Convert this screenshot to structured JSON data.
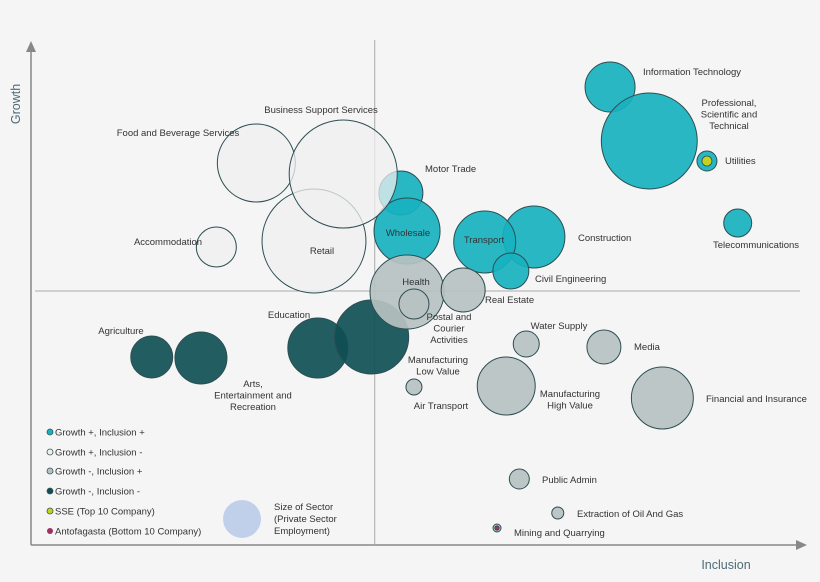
{
  "chart_data": {
    "type": "bubble",
    "xlabel": "Inclusion",
    "ylabel": "Growth",
    "xlim": [
      0,
      100
    ],
    "ylim": [
      0,
      100
    ],
    "quadrant_dividers": {
      "x": 44.7,
      "y": 50.8
    },
    "grid": false,
    "categories": {
      "gpip": {
        "label": "Growth +, Inclusion +",
        "color": "#17b1bf"
      },
      "gpim": {
        "label": "Growth +, Inclusion -",
        "color": "#efefef"
      },
      "gmip": {
        "label": "Growth -, Inclusion +",
        "color": "#b7c1c1"
      },
      "gmim": {
        "label": "Growth -, Inclusion -",
        "color": "#0f4f54"
      }
    },
    "markers": {
      "sse": {
        "label": "SSE (Top 10 Company)",
        "color": "#c6d11e",
        "sector": "Utilities"
      },
      "antofagasta": {
        "label": "Antofagasta (Bottom 10 Company)",
        "color": "#9b3260",
        "sector": "Mining and Quarrying"
      }
    },
    "size_legend": {
      "label": "Size of Sector\n(Private Sector\nEmployment)",
      "color": "#c1d0ea"
    },
    "points": [
      {
        "name": "Information Technology",
        "x": 75.3,
        "y": 91.6,
        "size": 62.5,
        "cat": "gpip"
      },
      {
        "name": "Professional,\nScientific and\nTechnical",
        "x": 80.4,
        "y": 80.8,
        "size": 230,
        "cat": "gpip"
      },
      {
        "name": "Utilities",
        "x": 87.9,
        "y": 76.8,
        "size": 10,
        "cat": "gpip",
        "marker": "sse"
      },
      {
        "name": "Telecommunications",
        "x": 91.9,
        "y": 64.4,
        "size": 19.6,
        "cat": "gpip"
      },
      {
        "name": "Construction",
        "x": 65.4,
        "y": 61.6,
        "size": 96,
        "cat": "gpip"
      },
      {
        "name": "Transport",
        "x": 59.0,
        "y": 60.6,
        "size": 96,
        "cat": "gpip"
      },
      {
        "name": "Civil Engineering",
        "x": 62.4,
        "y": 54.8,
        "size": 32.4,
        "cat": "gpip"
      },
      {
        "name": "Motor Trade",
        "x": 48.1,
        "y": 70.4,
        "size": 48.4,
        "cat": "gpip"
      },
      {
        "name": "Wholesale",
        "x": 48.9,
        "y": 62.8,
        "size": 109,
        "cat": "gpip"
      },
      {
        "name": "Food and Beverage Services",
        "x": 29.3,
        "y": 76.4,
        "size": 152,
        "cat": "gpim"
      },
      {
        "name": "Retail",
        "x": 36.8,
        "y": 60.8,
        "size": 270,
        "cat": "gpim"
      },
      {
        "name": "Business Support Services",
        "x": 40.6,
        "y": 74.2,
        "size": 292,
        "cat": "gpim"
      },
      {
        "name": "Accommodation",
        "x": 24.1,
        "y": 59.6,
        "size": 40,
        "cat": "gpim"
      },
      {
        "name": "Education",
        "x": 37.3,
        "y": 39.4,
        "size": 90,
        "cat": "gmim"
      },
      {
        "name": "Manufacturing\nLow Value",
        "x": 44.3,
        "y": 41.6,
        "size": 137,
        "cat": "gmim"
      },
      {
        "name": "Agriculture",
        "x": 15.7,
        "y": 37.6,
        "size": 44,
        "cat": "gmim"
      },
      {
        "name": "Arts,\nEntertainment and\nRecreation",
        "x": 22.1,
        "y": 37.4,
        "size": 67.6,
        "cat": "gmim"
      },
      {
        "name": "Health",
        "x": 48.9,
        "y": 50.6,
        "size": 137,
        "cat": "gmip"
      },
      {
        "name": "Postal and\nCourier\nActivities",
        "x": 49.8,
        "y": 48.2,
        "size": 22.5,
        "cat": "gmip"
      },
      {
        "name": "Real Estate",
        "x": 56.2,
        "y": 51.0,
        "size": 48.4,
        "cat": "gmip"
      },
      {
        "name": "Water Supply",
        "x": 64.4,
        "y": 40.2,
        "size": 16.9,
        "cat": "gmip"
      },
      {
        "name": "Media",
        "x": 74.5,
        "y": 39.6,
        "size": 28.9,
        "cat": "gmip"
      },
      {
        "name": "Financial and Insurance",
        "x": 82.1,
        "y": 29.4,
        "size": 96,
        "cat": "gmip"
      },
      {
        "name": "Manufacturing\nHigh Value",
        "x": 61.8,
        "y": 31.8,
        "size": 84,
        "cat": "gmip"
      },
      {
        "name": "Air Transport",
        "x": 49.8,
        "y": 31.6,
        "size": 6.4,
        "cat": "gmip"
      },
      {
        "name": "Public Admin",
        "x": 63.5,
        "y": 13.2,
        "size": 10,
        "cat": "gmip"
      },
      {
        "name": "Extraction of Oil And Gas",
        "x": 68.5,
        "y": 6.4,
        "size": 3.6,
        "cat": "gmip"
      },
      {
        "name": "Mining and Quarrying",
        "x": 60.6,
        "y": 3.4,
        "size": 1.6,
        "cat": "gmip",
        "marker": "antofagasta"
      }
    ]
  }
}
